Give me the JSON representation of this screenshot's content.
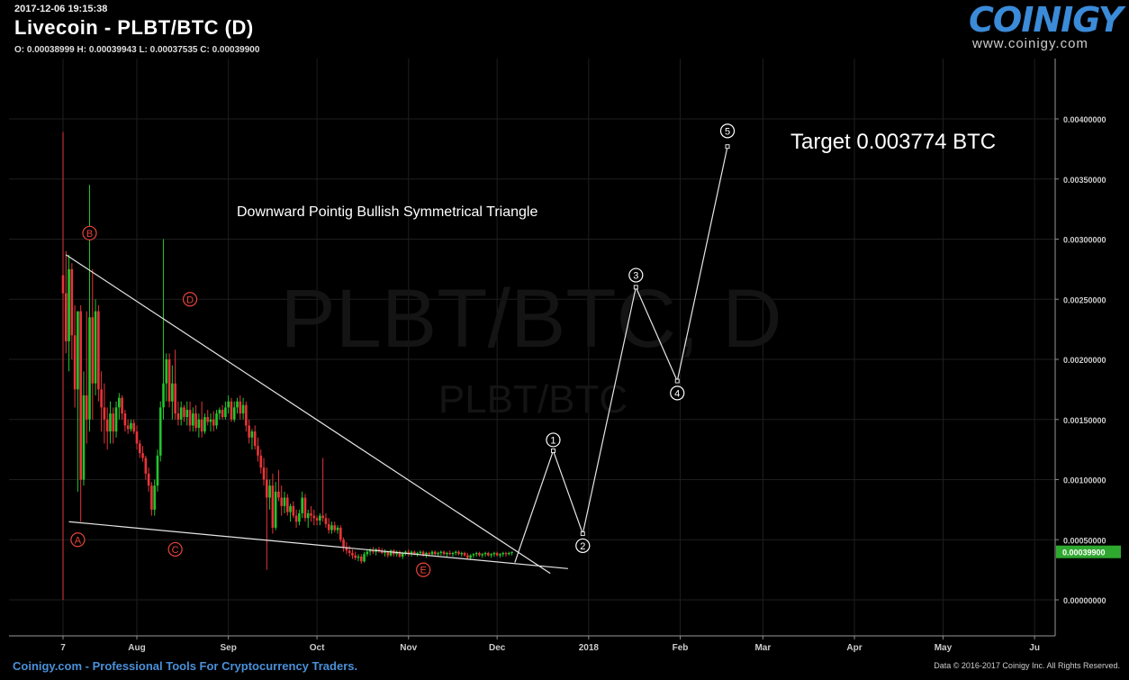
{
  "header": {
    "timestamp": "2017-12-06 19:15:38",
    "title": "Livecoin - PLBT/BTC (D)",
    "ohlc": "O: 0.00038999 H: 0.00039943 L: 0.00037535 C: 0.00039900"
  },
  "logo": {
    "word": "COINIGY",
    "url": "www.coinigy.com"
  },
  "watermark": {
    "big": "PLBT/BTC, D",
    "small": "PLBT/BTC"
  },
  "footer": {
    "left": "Coinigy.com - Professional Tools For Cryptocurrency Traders.",
    "right": "Data © 2016-2017 Coinigy Inc. All Rights Reserved."
  },
  "colors": {
    "up": "#22c52b",
    "down": "#e8343a",
    "price_badge": "#2fa82f",
    "line": "#e6e6e6",
    "label_red": "#e8443a"
  },
  "chart_data": {
    "type": "candlestick",
    "x_ticks": [
      "7",
      "Aug",
      "Sep",
      "Oct",
      "Nov",
      "Dec",
      "2018",
      "Feb",
      "Mar",
      "Apr",
      "May",
      "Ju"
    ],
    "y_ticks": [
      "0.00000000",
      "0.00050000",
      "0.00100000",
      "0.00150000",
      "0.00200000",
      "0.00250000",
      "0.00300000",
      "0.00350000",
      "0.00400000"
    ],
    "ylim": [
      0,
      0.0044
    ],
    "last_price": "0.00039900",
    "title_annotation": "Downward Pointig Bullish Symmetrical Triangle",
    "target_annotation": "Target 0.003774 BTC",
    "upper_trendline": [
      [
        "2017-07-08",
        0.00287
      ],
      [
        "2017-12-19",
        0.00022
      ]
    ],
    "lower_trendline": [
      [
        "2017-07-09",
        0.00065
      ],
      [
        "2017-12-25",
        0.00026
      ]
    ],
    "triangle_labels": [
      {
        "label": "A",
        "date": "2017-07-12",
        "value": 0.0005
      },
      {
        "label": "B",
        "date": "2017-07-16",
        "value": 0.00305
      },
      {
        "label": "C",
        "date": "2017-08-14",
        "value": 0.00042
      },
      {
        "label": "D",
        "date": "2017-08-19",
        "value": 0.0025
      },
      {
        "label": "E",
        "date": "2017-11-06",
        "value": 0.00025
      }
    ],
    "projection_path": [
      [
        "2017-12-07",
        0.00031
      ],
      [
        "2017-12-20",
        0.00124
      ],
      [
        "2017-12-30",
        0.00055
      ],
      [
        "2018-01-17",
        0.0026
      ],
      [
        "2018-01-31",
        0.00182
      ],
      [
        "2018-02-17",
        0.00377
      ]
    ],
    "wave_labels": [
      {
        "label": "1",
        "date": "2017-12-20",
        "value": 0.00133
      },
      {
        "label": "2",
        "date": "2017-12-30",
        "value": 0.00045
      },
      {
        "label": "3",
        "date": "2018-01-17",
        "value": 0.0027
      },
      {
        "label": "4",
        "date": "2018-01-31",
        "value": 0.00172
      },
      {
        "label": "5",
        "date": "2018-02-17",
        "value": 0.0039
      }
    ],
    "candles": [
      [
        "2017-07-07",
        0.0027,
        0.00389,
        0.0,
        0.00255
      ],
      [
        "2017-07-08",
        0.00255,
        0.0029,
        0.00205,
        0.00215
      ],
      [
        "2017-07-09",
        0.00215,
        0.00287,
        0.0019,
        0.00275
      ],
      [
        "2017-07-10",
        0.00275,
        0.0028,
        0.002,
        0.0022
      ],
      [
        "2017-07-11",
        0.0022,
        0.00245,
        0.0016,
        0.00175
      ],
      [
        "2017-07-12",
        0.00175,
        0.0024,
        0.0009,
        0.0024
      ],
      [
        "2017-07-13",
        0.0024,
        0.00245,
        0.00065,
        0.001
      ],
      [
        "2017-07-14",
        0.001,
        0.0019,
        0.00095,
        0.0017
      ],
      [
        "2017-07-15",
        0.0017,
        0.0024,
        0.0013,
        0.0015
      ],
      [
        "2017-07-16",
        0.0015,
        0.00345,
        0.0014,
        0.00235
      ],
      [
        "2017-07-17",
        0.00235,
        0.00275,
        0.0015,
        0.0018
      ],
      [
        "2017-07-18",
        0.0018,
        0.0025,
        0.0017,
        0.0024
      ],
      [
        "2017-07-19",
        0.0024,
        0.00245,
        0.00165,
        0.00175
      ],
      [
        "2017-07-20",
        0.00175,
        0.0019,
        0.0014,
        0.0016
      ],
      [
        "2017-07-21",
        0.0016,
        0.0018,
        0.0013,
        0.0015
      ],
      [
        "2017-07-22",
        0.0015,
        0.0016,
        0.00125,
        0.0014
      ],
      [
        "2017-07-23",
        0.0014,
        0.00165,
        0.0013,
        0.00155
      ],
      [
        "2017-07-24",
        0.00155,
        0.0016,
        0.0013,
        0.0014
      ],
      [
        "2017-07-25",
        0.0014,
        0.00165,
        0.00135,
        0.0016
      ],
      [
        "2017-07-26",
        0.0016,
        0.00172,
        0.0015,
        0.00168
      ],
      [
        "2017-07-27",
        0.00168,
        0.0017,
        0.0015,
        0.00155
      ],
      [
        "2017-07-28",
        0.00155,
        0.00158,
        0.0014,
        0.00145
      ],
      [
        "2017-07-29",
        0.00145,
        0.0015,
        0.00138,
        0.00142
      ],
      [
        "2017-07-30",
        0.00142,
        0.0015,
        0.0014,
        0.00147
      ],
      [
        "2017-07-31",
        0.00147,
        0.0015,
        0.00138,
        0.0014
      ],
      [
        "2017-08-01",
        0.0014,
        0.00145,
        0.00125,
        0.0013
      ],
      [
        "2017-08-02",
        0.0013,
        0.00133,
        0.00118,
        0.00122
      ],
      [
        "2017-08-03",
        0.00122,
        0.00128,
        0.00115,
        0.00118
      ],
      [
        "2017-08-04",
        0.00118,
        0.0012,
        0.001,
        0.00105
      ],
      [
        "2017-08-05",
        0.00105,
        0.0011,
        0.0009,
        0.00095
      ],
      [
        "2017-08-06",
        0.00095,
        0.00098,
        0.0007,
        0.00075
      ],
      [
        "2017-08-07",
        0.00075,
        0.001,
        0.0007,
        0.00095
      ],
      [
        "2017-08-08",
        0.00095,
        0.00125,
        0.0009,
        0.0012
      ],
      [
        "2017-08-09",
        0.0012,
        0.00165,
        0.00115,
        0.0016
      ],
      [
        "2017-08-10",
        0.0016,
        0.003,
        0.0015,
        0.0018
      ],
      [
        "2017-08-11",
        0.0018,
        0.00205,
        0.00165,
        0.002
      ],
      [
        "2017-08-12",
        0.002,
        0.00205,
        0.0016,
        0.00165
      ],
      [
        "2017-08-13",
        0.00165,
        0.00195,
        0.0015,
        0.0018
      ],
      [
        "2017-08-14",
        0.0018,
        0.00208,
        0.0015,
        0.00155
      ],
      [
        "2017-08-15",
        0.00155,
        0.00165,
        0.00145,
        0.0015
      ],
      [
        "2017-08-16",
        0.0015,
        0.00165,
        0.00145,
        0.0016
      ],
      [
        "2017-08-17",
        0.0016,
        0.00162,
        0.00148,
        0.00152
      ],
      [
        "2017-08-18",
        0.00152,
        0.00165,
        0.00145,
        0.00158
      ],
      [
        "2017-08-19",
        0.00158,
        0.00165,
        0.0014,
        0.00145
      ],
      [
        "2017-08-20",
        0.00145,
        0.0016,
        0.0014,
        0.00155
      ],
      [
        "2017-08-21",
        0.00155,
        0.00162,
        0.0014,
        0.00143
      ],
      [
        "2017-08-22",
        0.00143,
        0.00155,
        0.00135,
        0.0015
      ],
      [
        "2017-08-23",
        0.0015,
        0.00165,
        0.00135,
        0.0014
      ],
      [
        "2017-08-24",
        0.0014,
        0.00155,
        0.00138,
        0.00152
      ],
      [
        "2017-08-25",
        0.00152,
        0.00158,
        0.00145,
        0.00148
      ],
      [
        "2017-08-26",
        0.00148,
        0.00155,
        0.0014,
        0.0015
      ],
      [
        "2017-08-27",
        0.0015,
        0.00157,
        0.0014,
        0.00145
      ],
      [
        "2017-08-28",
        0.00145,
        0.00158,
        0.00142,
        0.00155
      ],
      [
        "2017-08-29",
        0.00155,
        0.0016,
        0.0015,
        0.00158
      ],
      [
        "2017-08-30",
        0.00158,
        0.00162,
        0.0015,
        0.00152
      ],
      [
        "2017-08-31",
        0.00152,
        0.00165,
        0.0015,
        0.0016
      ],
      [
        "2017-09-01",
        0.0016,
        0.0017,
        0.00155,
        0.00165
      ],
      [
        "2017-09-02",
        0.00165,
        0.00168,
        0.00148,
        0.0015
      ],
      [
        "2017-09-03",
        0.0015,
        0.00165,
        0.00148,
        0.0016
      ],
      [
        "2017-09-04",
        0.0016,
        0.00168,
        0.00155,
        0.00165
      ],
      [
        "2017-09-05",
        0.00165,
        0.0017,
        0.0015,
        0.00155
      ],
      [
        "2017-09-06",
        0.00155,
        0.00168,
        0.0015,
        0.00162
      ],
      [
        "2017-09-07",
        0.00162,
        0.00165,
        0.0014,
        0.00145
      ],
      [
        "2017-09-08",
        0.00145,
        0.0015,
        0.0013,
        0.00135
      ],
      [
        "2017-09-09",
        0.00135,
        0.00142,
        0.00125,
        0.0014
      ],
      [
        "2017-09-10",
        0.0014,
        0.00145,
        0.00125,
        0.00128
      ],
      [
        "2017-09-11",
        0.00128,
        0.00135,
        0.00115,
        0.0012
      ],
      [
        "2017-09-12",
        0.0012,
        0.00125,
        0.00105,
        0.0011
      ],
      [
        "2017-09-13",
        0.0011,
        0.00118,
        0.00095,
        0.001
      ],
      [
        "2017-09-14",
        0.001,
        0.0011,
        0.00025,
        0.00085
      ],
      [
        "2017-09-15",
        0.00085,
        0.001,
        0.00075,
        0.00095
      ],
      [
        "2017-09-16",
        0.00095,
        0.00105,
        0.00055,
        0.0006
      ],
      [
        "2017-09-17",
        0.0006,
        0.00098,
        0.00058,
        0.0009
      ],
      [
        "2017-09-18",
        0.0009,
        0.00108,
        0.00082,
        0.00085
      ],
      [
        "2017-09-19",
        0.00085,
        0.00095,
        0.0007,
        0.00078
      ],
      [
        "2017-09-20",
        0.00078,
        0.0009,
        0.00072,
        0.00085
      ],
      [
        "2017-09-21",
        0.00085,
        0.00088,
        0.0007,
        0.00073
      ],
      [
        "2017-09-22",
        0.00073,
        0.0008,
        0.00065,
        0.00078
      ],
      [
        "2017-09-23",
        0.00078,
        0.00082,
        0.00068,
        0.0007
      ],
      [
        "2017-09-24",
        0.0007,
        0.00075,
        0.0006,
        0.00065
      ],
      [
        "2017-09-25",
        0.00065,
        0.00075,
        0.00062,
        0.00072
      ],
      [
        "2017-09-26",
        0.00072,
        0.0009,
        0.00068,
        0.00085
      ],
      [
        "2017-09-27",
        0.00085,
        0.00088,
        0.00065,
        0.00068
      ],
      [
        "2017-09-28",
        0.00068,
        0.00075,
        0.0006,
        0.00072
      ],
      [
        "2017-09-29",
        0.00072,
        0.00078,
        0.00065,
        0.0007
      ],
      [
        "2017-09-30",
        0.0007,
        0.00075,
        0.00062,
        0.00068
      ],
      [
        "2017-10-01",
        0.00068,
        0.0007,
        0.00062,
        0.00066
      ],
      [
        "2017-10-02",
        0.00066,
        0.00072,
        0.00062,
        0.0007
      ],
      [
        "2017-10-03",
        0.0007,
        0.00118,
        0.00065,
        0.00068
      ],
      [
        "2017-10-04",
        0.00068,
        0.00072,
        0.0006,
        0.00063
      ],
      [
        "2017-10-05",
        0.00063,
        0.00068,
        0.00055,
        0.00058
      ],
      [
        "2017-10-06",
        0.00058,
        0.00065,
        0.00055,
        0.00062
      ],
      [
        "2017-10-07",
        0.00062,
        0.00065,
        0.00056,
        0.00058
      ],
      [
        "2017-10-08",
        0.00058,
        0.00062,
        0.00055,
        0.0006
      ],
      [
        "2017-10-09",
        0.0006,
        0.00062,
        0.00048,
        0.0005
      ],
      [
        "2017-10-10",
        0.0005,
        0.00052,
        0.0004,
        0.00044
      ],
      [
        "2017-10-11",
        0.00044,
        0.00048,
        0.00038,
        0.00041
      ],
      [
        "2017-10-12",
        0.00041,
        0.00045,
        0.00036,
        0.00039
      ],
      [
        "2017-10-13",
        0.00039,
        0.00042,
        0.00034,
        0.00037
      ],
      [
        "2017-10-14",
        0.00037,
        0.0004,
        0.00033,
        0.00035
      ],
      [
        "2017-10-15",
        0.00035,
        0.00038,
        0.00032,
        0.00036
      ],
      [
        "2017-10-16",
        0.00036,
        0.00038,
        0.0003,
        0.00032
      ],
      [
        "2017-10-17",
        0.00032,
        0.0004,
        0.00031,
        0.00038
      ],
      [
        "2017-10-18",
        0.00038,
        0.00042,
        0.00036,
        0.0004
      ],
      [
        "2017-10-19",
        0.0004,
        0.00043,
        0.00037,
        0.00041
      ],
      [
        "2017-10-20",
        0.00041,
        0.00044,
        0.00038,
        0.0004
      ],
      [
        "2017-10-21",
        0.0004,
        0.00043,
        0.00037,
        0.00042
      ],
      [
        "2017-10-22",
        0.00042,
        0.00044,
        0.00039,
        0.00041
      ],
      [
        "2017-10-23",
        0.00041,
        0.00043,
        0.00038,
        0.00039
      ],
      [
        "2017-10-24",
        0.00039,
        0.00042,
        0.00036,
        0.0004
      ],
      [
        "2017-10-25",
        0.0004,
        0.00041,
        0.00035,
        0.00037
      ],
      [
        "2017-10-26",
        0.00037,
        0.00042,
        0.00036,
        0.00041
      ],
      [
        "2017-10-27",
        0.00041,
        0.00042,
        0.00036,
        0.00038
      ],
      [
        "2017-10-28",
        0.00038,
        0.00041,
        0.00036,
        0.0004
      ],
      [
        "2017-10-29",
        0.0004,
        0.00041,
        0.00035,
        0.00036
      ],
      [
        "2017-10-30",
        0.00036,
        0.0004,
        0.00034,
        0.00039
      ],
      [
        "2017-10-31",
        0.00039,
        0.00041,
        0.00037,
        0.0004
      ],
      [
        "2017-11-01",
        0.0004,
        0.00042,
        0.00036,
        0.00038
      ],
      [
        "2017-11-02",
        0.00038,
        0.00041,
        0.00036,
        0.0004
      ],
      [
        "2017-11-03",
        0.0004,
        0.00041,
        0.00037,
        0.00038
      ],
      [
        "2017-11-04",
        0.00038,
        0.0004,
        0.00036,
        0.00039
      ],
      [
        "2017-11-05",
        0.00039,
        0.00041,
        0.00037,
        0.0004
      ],
      [
        "2017-11-06",
        0.0004,
        0.00041,
        0.00036,
        0.00037
      ],
      [
        "2017-11-07",
        0.00037,
        0.0004,
        0.00035,
        0.00039
      ],
      [
        "2017-11-08",
        0.00039,
        0.0004,
        0.00036,
        0.00038
      ],
      [
        "2017-11-09",
        0.00038,
        0.00041,
        0.00037,
        0.0004
      ],
      [
        "2017-11-10",
        0.0004,
        0.00041,
        0.00037,
        0.00038
      ],
      [
        "2017-11-11",
        0.00038,
        0.0004,
        0.00036,
        0.00039
      ],
      [
        "2017-11-12",
        0.00039,
        0.00041,
        0.00037,
        0.0004
      ],
      [
        "2017-11-13",
        0.0004,
        0.00041,
        0.00037,
        0.00038
      ],
      [
        "2017-11-14",
        0.00038,
        0.0004,
        0.00036,
        0.00039
      ],
      [
        "2017-11-15",
        0.00039,
        0.00041,
        0.00037,
        0.00038
      ],
      [
        "2017-11-16",
        0.00038,
        0.0004,
        0.00036,
        0.00039
      ],
      [
        "2017-11-17",
        0.00039,
        0.00041,
        0.00037,
        0.0004
      ],
      [
        "2017-11-18",
        0.0004,
        0.00041,
        0.00037,
        0.00038
      ],
      [
        "2017-11-19",
        0.00038,
        0.0004,
        0.00036,
        0.00039
      ],
      [
        "2017-11-20",
        0.00039,
        0.0004,
        0.00036,
        0.00037
      ],
      [
        "2017-11-21",
        0.00037,
        0.00039,
        0.00034,
        0.00035
      ],
      [
        "2017-11-22",
        0.00035,
        0.00038,
        0.00033,
        0.00037
      ],
      [
        "2017-11-23",
        0.00037,
        0.00039,
        0.00035,
        0.00038
      ],
      [
        "2017-11-24",
        0.00038,
        0.0004,
        0.00036,
        0.00039
      ],
      [
        "2017-11-25",
        0.00039,
        0.0004,
        0.00036,
        0.00037
      ],
      [
        "2017-11-26",
        0.00037,
        0.00039,
        0.00035,
        0.00038
      ],
      [
        "2017-11-27",
        0.00038,
        0.0004,
        0.00036,
        0.00039
      ],
      [
        "2017-11-28",
        0.00039,
        0.0004,
        0.00036,
        0.00037
      ],
      [
        "2017-11-29",
        0.00037,
        0.00039,
        0.00035,
        0.00038
      ],
      [
        "2017-11-30",
        0.00038,
        0.0004,
        0.00036,
        0.00039
      ],
      [
        "2017-12-01",
        0.00039,
        0.0004,
        0.00036,
        0.00037
      ],
      [
        "2017-12-02",
        0.00037,
        0.00039,
        0.00035,
        0.00038
      ],
      [
        "2017-12-03",
        0.00038,
        0.0004,
        0.00036,
        0.00039
      ],
      [
        "2017-12-04",
        0.00039,
        0.0004,
        0.00036,
        0.00038
      ],
      [
        "2017-12-05",
        0.00038,
        0.0004,
        0.00037,
        0.00039
      ],
      [
        "2017-12-06",
        0.00039,
        0.0004,
        0.00037,
        0.0004
      ]
    ]
  }
}
